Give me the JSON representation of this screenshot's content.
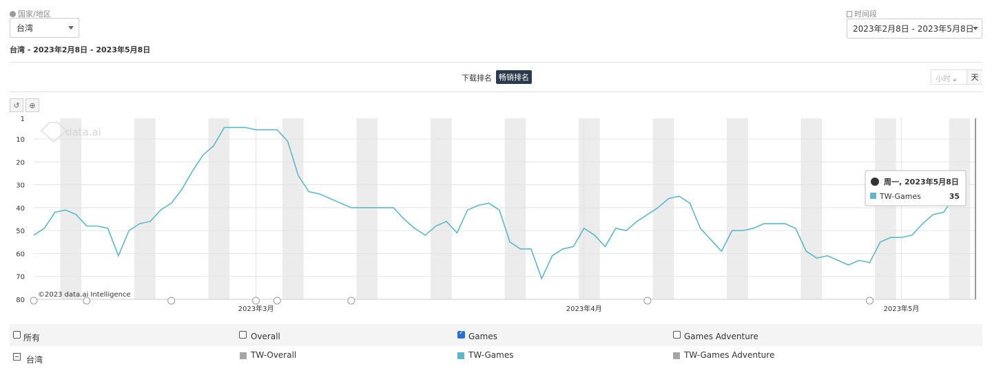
{
  "filters": {
    "region_label": "国家/地区",
    "region_value": "台湾",
    "period_label": "时间段",
    "period_value": "2023年2月8日 - 2023年5月8日"
  },
  "subtitle": "台湾 - 2023年2月8日 - 2023年5月8日",
  "tabs": {
    "download_rank": "下载排名",
    "grossing_rank": "畅销排名"
  },
  "granularity": {
    "hour": "小时",
    "day": "天"
  },
  "watermark": "data.ai",
  "copyright": "©2023 data.ai Intelligence",
  "tooltip": {
    "date": "周一, 2023年5月8日",
    "series": "TW-Games",
    "value": "35"
  },
  "legend": {
    "header": {
      "all": "所有",
      "overall": "Overall",
      "games": "Games",
      "games_adventure": "Games Adventure"
    },
    "row": {
      "region": "台湾",
      "overall": "TW-Overall",
      "games": "TW-Games",
      "games_adventure": "TW-Games Adventure"
    },
    "checked": {
      "all": false,
      "overall": false,
      "games": true,
      "games_adventure": false
    }
  },
  "colors": {
    "line": "#5bb8c9",
    "weekend": "#ececec",
    "grid": "#e3e3e3",
    "tab_active": "#2b3b4e",
    "checkbox": "#2a6fd1",
    "gray_legend": "#a6a6a6"
  },
  "chart_data": {
    "type": "line",
    "title": "",
    "xlabel": "",
    "ylabel": "",
    "y_reversed": true,
    "ylim": [
      80,
      1
    ],
    "yticks": [
      1,
      10,
      20,
      30,
      40,
      50,
      60,
      70,
      80
    ],
    "xlim": [
      "2023-02-08",
      "2023-05-08"
    ],
    "xticks": [
      {
        "date": "2023-03-01",
        "label": "2023年3月"
      },
      {
        "date": "2023-04-01",
        "label": "2023年4月"
      },
      {
        "date": "2023-05-01",
        "label": "2023年5月"
      }
    ],
    "grid": true,
    "weekend_bands": [
      "2023-02-11",
      "2023-02-18",
      "2023-02-25",
      "2023-03-04",
      "2023-03-11",
      "2023-03-18",
      "2023-03-25",
      "2023-04-01",
      "2023-04-08",
      "2023-04-15",
      "2023-04-22",
      "2023-04-29",
      "2023-05-06"
    ],
    "event_marker_dates": [
      "2023-02-08",
      "2023-02-13",
      "2023-02-21",
      "2023-03-01",
      "2023-03-03",
      "2023-03-10",
      "2023-04-07",
      "2023-04-28"
    ],
    "series": [
      {
        "name": "TW-Games",
        "start_date": "2023-02-08",
        "values": [
          52,
          49,
          42,
          41,
          43,
          48,
          48,
          49,
          61,
          50,
          47,
          46,
          41,
          38,
          32,
          24,
          17,
          13,
          5,
          5,
          5,
          6,
          6,
          6,
          11,
          26,
          33,
          34,
          36,
          38,
          40,
          40,
          40,
          40,
          40,
          45,
          49,
          52,
          48,
          46,
          51,
          41,
          39,
          38,
          41,
          55,
          58,
          58,
          71,
          61,
          58,
          57,
          49,
          52,
          57,
          49,
          50,
          46,
          43,
          40,
          36,
          35,
          38,
          49,
          54,
          59,
          50,
          50,
          49,
          47,
          47,
          47,
          49,
          59,
          62,
          61,
          63,
          65,
          63,
          64,
          55,
          53,
          53,
          52,
          47,
          43,
          42,
          35,
          35
        ]
      }
    ]
  }
}
